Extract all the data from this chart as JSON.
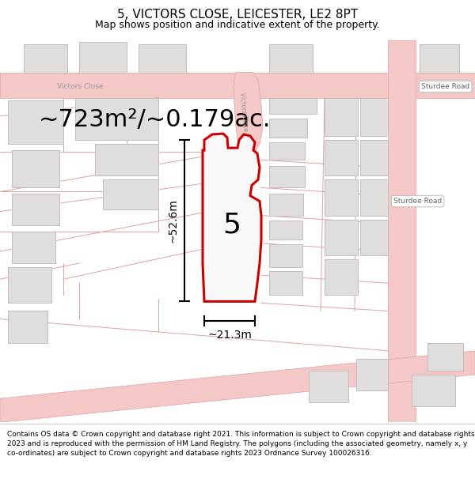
{
  "title": "5, VICTORS CLOSE, LEICESTER, LE2 8PT",
  "subtitle": "Map shows position and indicative extent of the property.",
  "area_text": "~723m²/~0.179ac.",
  "dim_width": "~21.3m",
  "dim_height": "~52.6m",
  "plot_number": "5",
  "map_bg": "#f2f0ee",
  "road_fill": "#f5c8c8",
  "road_edge": "#e0a0a0",
  "building_fill": "#e0dedd",
  "building_stroke": "#c0bfbf",
  "prop_fill": "#f8f8f8",
  "prop_stroke": "#cc0000",
  "text_gray": "#999999",
  "footer_text": "Contains OS data © Crown copyright and database right 2021. This information is subject to Crown copyright and database rights 2023 and is reproduced with the permission of HM Land Registry. The polygons (including the associated geometry, namely x, y co-ordinates) are subject to Crown copyright and database rights 2023 Ordnance Survey 100026316.",
  "title_fontsize": 11,
  "subtitle_fontsize": 9,
  "area_fontsize": 22,
  "footer_fontsize": 6.5
}
